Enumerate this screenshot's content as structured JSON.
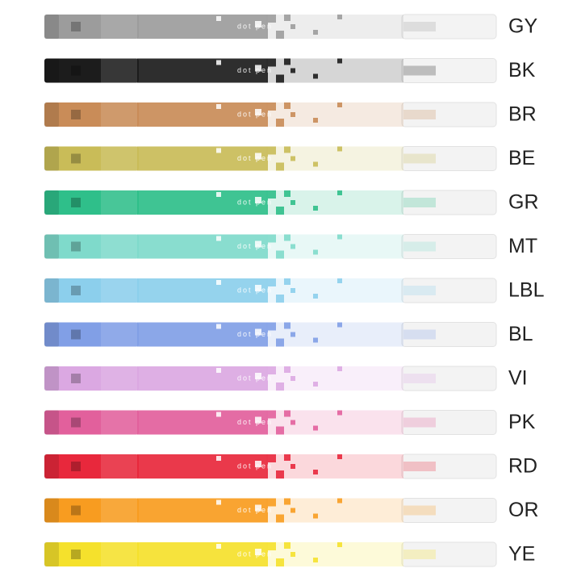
{
  "brand_text": "dot pen",
  "pens": [
    {
      "label": "GY",
      "color": "#9c9c9c"
    },
    {
      "label": "BK",
      "color": "#1c1c1c"
    },
    {
      "label": "BR",
      "color": "#c98c58"
    },
    {
      "label": "BE",
      "color": "#c9bc58"
    },
    {
      "label": "GR",
      "color": "#2fbf8a"
    },
    {
      "label": "MT",
      "color": "#7fdacb"
    },
    {
      "label": "LBL",
      "color": "#8ccfec"
    },
    {
      "label": "BL",
      "color": "#819fe6"
    },
    {
      "label": "VI",
      "color": "#dba8e2"
    },
    {
      "label": "PK",
      "color": "#e2609c"
    },
    {
      "label": "RD",
      "color": "#e8283c"
    },
    {
      "label": "OR",
      "color": "#f89c20"
    },
    {
      "label": "YE",
      "color": "#f5e12c"
    }
  ]
}
